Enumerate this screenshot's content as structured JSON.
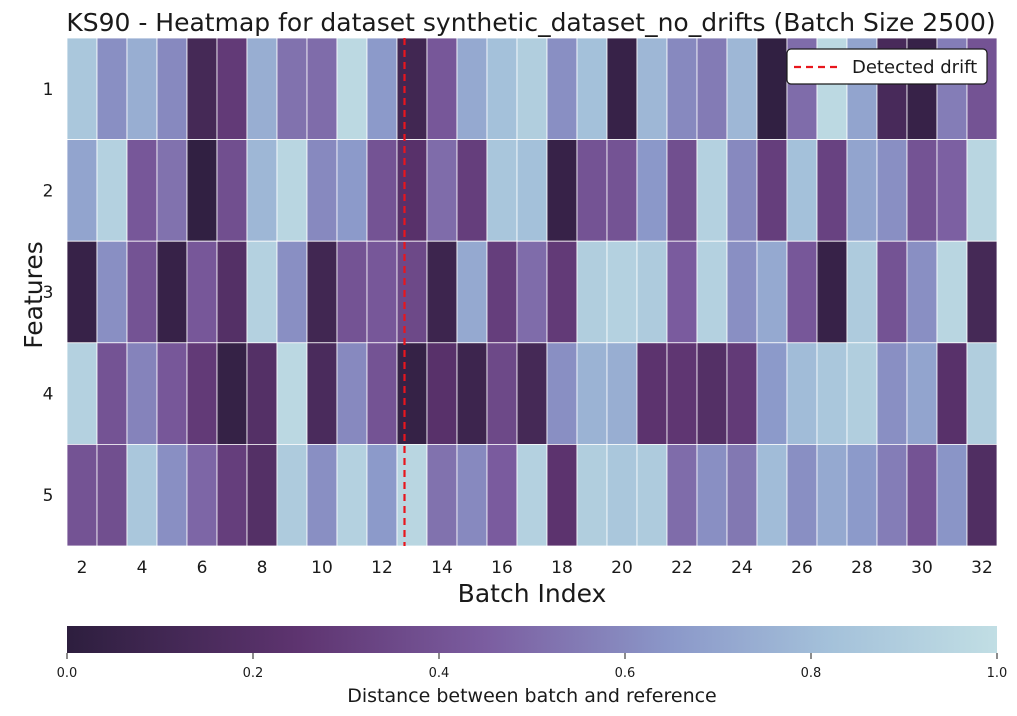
{
  "chart_data": {
    "type": "heatmap",
    "title": "KS90 - Heatmap for dataset synthetic_dataset_no_drifts (Batch Size 2500)",
    "xlabel": "Batch Index",
    "ylabel": "Features",
    "x": [
      2,
      3,
      4,
      5,
      6,
      7,
      8,
      9,
      10,
      11,
      12,
      13,
      14,
      15,
      16,
      17,
      18,
      19,
      20,
      21,
      22,
      23,
      24,
      25,
      26,
      27,
      28,
      29,
      30,
      31,
      32
    ],
    "x_tick_labels": [
      "2",
      "4",
      "6",
      "8",
      "10",
      "12",
      "14",
      "16",
      "18",
      "20",
      "22",
      "24",
      "26",
      "28",
      "30",
      "32"
    ],
    "y_tick_labels": [
      "1",
      "2",
      "3",
      "4",
      "5"
    ],
    "values": [
      [
        0.86,
        0.62,
        0.74,
        0.6,
        0.12,
        0.28,
        0.74,
        0.52,
        0.5,
        0.97,
        0.66,
        0.1,
        0.42,
        0.72,
        0.82,
        0.9,
        0.62,
        0.82,
        0.05,
        0.78,
        0.6,
        0.55,
        0.78,
        0.02,
        0.5,
        0.97,
        0.7,
        0.14,
        0.05,
        0.56,
        0.4
      ],
      [
        0.7,
        0.92,
        0.42,
        0.52,
        0.02,
        0.38,
        0.78,
        0.95,
        0.6,
        0.66,
        0.4,
        0.22,
        0.5,
        0.3,
        0.85,
        0.82,
        0.05,
        0.4,
        0.4,
        0.65,
        0.38,
        0.92,
        0.6,
        0.3,
        0.82,
        0.32,
        0.7,
        0.62,
        0.4,
        0.46,
        0.95
      ],
      [
        0.05,
        0.62,
        0.4,
        0.05,
        0.42,
        0.2,
        0.92,
        0.62,
        0.1,
        0.4,
        0.42,
        0.35,
        0.08,
        0.72,
        0.3,
        0.5,
        0.28,
        0.9,
        0.92,
        0.88,
        0.44,
        0.92,
        0.62,
        0.72,
        0.42,
        0.05,
        0.88,
        0.4,
        0.62,
        0.95,
        0.12
      ],
      [
        0.92,
        0.4,
        0.58,
        0.42,
        0.28,
        0.04,
        0.2,
        0.96,
        0.15,
        0.6,
        0.4,
        0.04,
        0.22,
        0.08,
        0.35,
        0.12,
        0.62,
        0.76,
        0.74,
        0.24,
        0.26,
        0.2,
        0.28,
        0.66,
        0.8,
        0.86,
        0.9,
        0.62,
        0.7,
        0.22,
        0.9
      ],
      [
        0.4,
        0.38,
        0.86,
        0.62,
        0.48,
        0.3,
        0.2,
        0.88,
        0.62,
        0.92,
        0.66,
        0.95,
        0.52,
        0.6,
        0.44,
        0.92,
        0.24,
        0.9,
        0.86,
        0.88,
        0.5,
        0.62,
        0.54,
        0.8,
        0.62,
        0.72,
        0.66,
        0.56,
        0.4,
        0.64,
        0.18
      ]
    ],
    "vmin": 0.0,
    "vmax": 1.0,
    "colormap": [
      "#2d1e3e",
      "#6b3f7d",
      "#8a8bc2",
      "#a4c1da",
      "#c1dee4"
    ],
    "drift_line_x": 12.75,
    "drift_line_color": "#e8161d",
    "legend": {
      "label": "Detected drift",
      "placement": "top-right"
    },
    "colorbar": {
      "label": "Distance between batch and reference",
      "ticks": [
        "0.0",
        "0.2",
        "0.4",
        "0.6",
        "0.8",
        "1.0"
      ]
    }
  }
}
